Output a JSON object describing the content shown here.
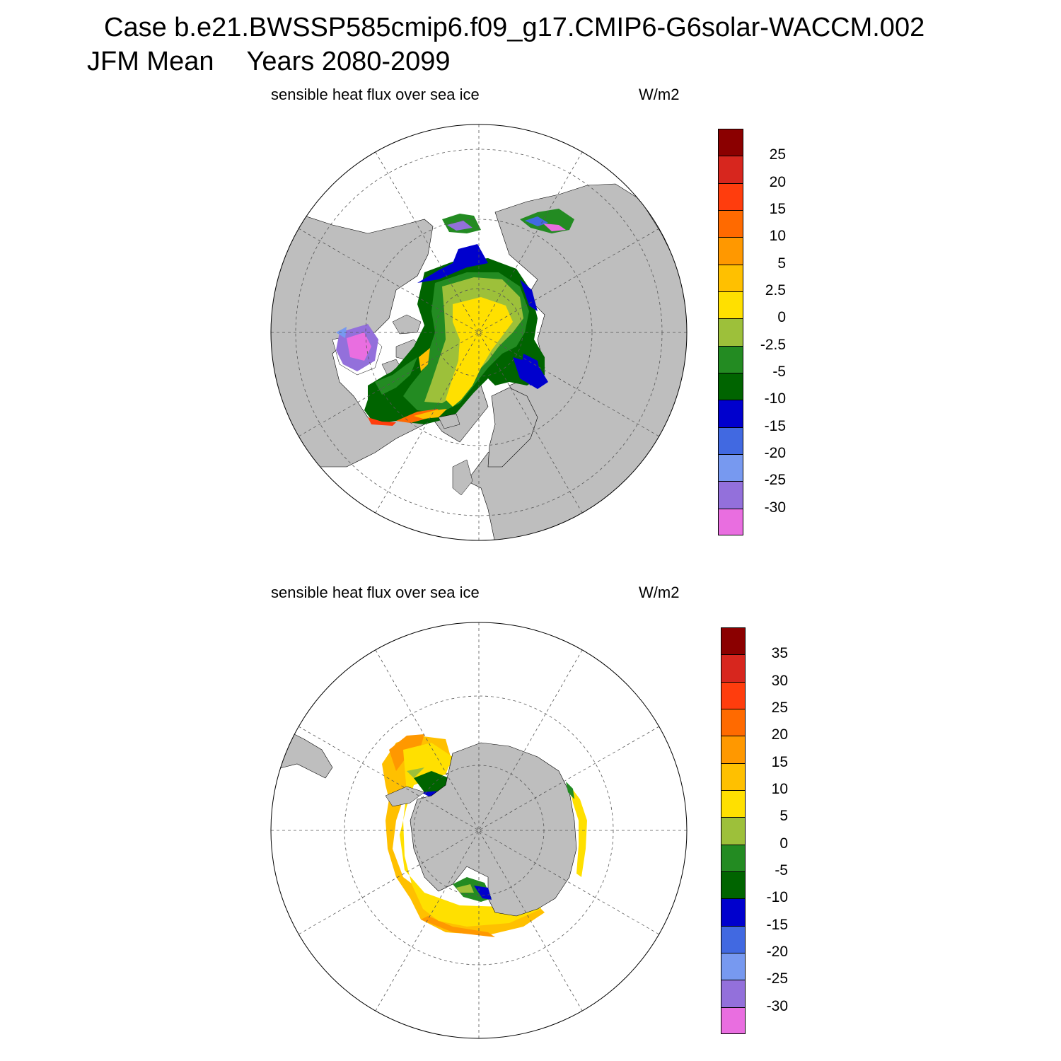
{
  "title": {
    "case_line": "Case b.e21.BWSSP585cmip6.f09_g17.CMIP6-G6solar-WACCM.002",
    "season": "JFM Mean",
    "years": "Years 2080-2099"
  },
  "panels": [
    {
      "hemisphere": "north",
      "variable_label": "sensible heat flux over sea ice",
      "units": "W/m2",
      "colorbar": {
        "colors": [
          "#8b0000",
          "#d7261e",
          "#ff3d0d",
          "#ff6a00",
          "#ff9800",
          "#ffc000",
          "#ffe000",
          "#9dc03a",
          "#238b22",
          "#006400",
          "#0000cd",
          "#4169e1",
          "#7799f0",
          "#9370db",
          "#e96ee0"
        ],
        "labels": [
          "25",
          "20",
          "15",
          "10",
          "5",
          "2.5",
          "0",
          "-2.5",
          "-5",
          "-10",
          "-15",
          "-20",
          "-25",
          "-30"
        ]
      }
    },
    {
      "hemisphere": "south",
      "variable_label": "sensible heat flux over sea ice",
      "units": "W/m2",
      "colorbar": {
        "colors": [
          "#8b0000",
          "#d7261e",
          "#ff3d0d",
          "#ff6a00",
          "#ff9800",
          "#ffc000",
          "#ffe000",
          "#9dc03a",
          "#238b22",
          "#006400",
          "#0000cd",
          "#4169e1",
          "#7799f0",
          "#9370db",
          "#e96ee0"
        ],
        "labels": [
          "35",
          "30",
          "25",
          "20",
          "15",
          "10",
          "5",
          "0",
          "-5",
          "-10",
          "-15",
          "-20",
          "-25",
          "-30"
        ]
      }
    }
  ]
}
